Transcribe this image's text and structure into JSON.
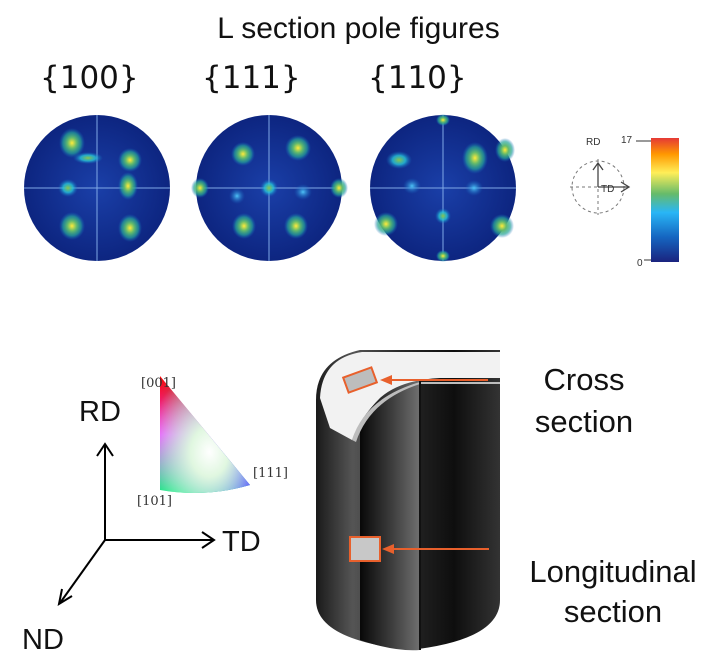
{
  "title": "L section pole figures",
  "pole_figures": [
    {
      "label": "{100}"
    },
    {
      "label": "{111}"
    },
    {
      "label": "{110}"
    }
  ],
  "colorbar": {
    "max": "17",
    "min": "0",
    "colors": [
      "#1a237e",
      "#1565c0",
      "#29b6f6",
      "#66bb6a",
      "#ffee58",
      "#ff9800",
      "#e53935"
    ]
  },
  "key_axes": {
    "rd": "RD",
    "td": "TD"
  },
  "triangle": {
    "c001": "[001]",
    "c111": "[111]",
    "c101": "[101]"
  },
  "axes": {
    "rd": "RD",
    "td": "TD",
    "nd": "ND"
  },
  "callouts": {
    "cross_line1": "Cross",
    "cross_line2": "section",
    "long_line1": "Longitudinal",
    "long_line2": "section"
  },
  "accent_color": "#e8602c"
}
